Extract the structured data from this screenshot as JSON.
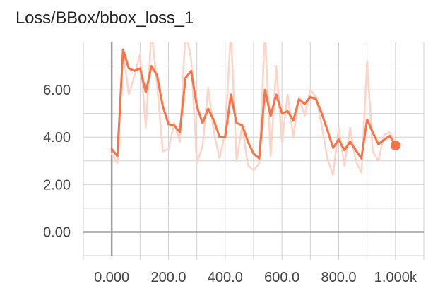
{
  "card": {
    "title": "Loss/BBox/bbox_loss_1"
  },
  "colors": {
    "series": "#ff7043",
    "raw": "#ffd3c6",
    "grid": "#d0d0d0",
    "axis": "#9e9e9e"
  },
  "chart_data": {
    "type": "line",
    "title": "Loss/BBox/bbox_loss_1",
    "xlabel": "",
    "ylabel": "",
    "xlim": [
      -100,
      1100
    ],
    "ylim": [
      -1.0,
      8.0
    ],
    "x_ticks": [
      0,
      200,
      400,
      600,
      800,
      1000
    ],
    "x_tick_labels": [
      "0.000",
      "200.0",
      "400.0",
      "600.0",
      "800.0",
      "1.000k"
    ],
    "y_ticks": [
      0,
      2,
      4,
      6
    ],
    "y_tick_labels": [
      "0.00",
      "2.00",
      "4.00",
      "6.00"
    ],
    "grid": true,
    "series": [
      {
        "name": "",
        "smoothed": true,
        "x": [
          0,
          20,
          40,
          60,
          80,
          100,
          120,
          140,
          160,
          180,
          200,
          220,
          240,
          260,
          280,
          300,
          320,
          340,
          360,
          380,
          400,
          420,
          440,
          460,
          480,
          500,
          520,
          540,
          560,
          580,
          600,
          620,
          640,
          660,
          680,
          700,
          720,
          740,
          760,
          780,
          800,
          820,
          840,
          860,
          880,
          900,
          920,
          940,
          960,
          980,
          1000
        ],
        "y": [
          3.5,
          3.2,
          7.7,
          6.9,
          6.8,
          6.9,
          5.9,
          7.0,
          6.6,
          5.3,
          4.55,
          4.5,
          4.2,
          6.5,
          6.8,
          5.3,
          4.6,
          5.2,
          4.7,
          4.0,
          4.0,
          5.8,
          4.6,
          4.5,
          3.8,
          3.3,
          3.1,
          6.0,
          4.9,
          5.8,
          5.0,
          5.1,
          4.7,
          5.6,
          5.4,
          5.7,
          5.6,
          5.0,
          4.3,
          3.55,
          3.9,
          3.45,
          3.8,
          3.45,
          3.1,
          4.75,
          4.2,
          3.7,
          3.9,
          4.05,
          3.65
        ]
      },
      {
        "name": "",
        "smoothed": false,
        "x": [
          0,
          20,
          40,
          60,
          80,
          100,
          120,
          140,
          160,
          180,
          200,
          220,
          240,
          260,
          280,
          300,
          320,
          340,
          360,
          380,
          400,
          420,
          440,
          460,
          480,
          500,
          520,
          540,
          560,
          580,
          600,
          620,
          640,
          660,
          680,
          700,
          720,
          740,
          760,
          780,
          800,
          820,
          840,
          860,
          880,
          900,
          920,
          940,
          960,
          980,
          1000
        ],
        "y": [
          3.3,
          2.9,
          7.6,
          5.8,
          6.6,
          7.5,
          4.4,
          8.5,
          6.2,
          3.4,
          3.5,
          4.6,
          3.8,
          8.5,
          7.3,
          2.9,
          3.6,
          6.1,
          4.2,
          3.1,
          4.2,
          8.5,
          3.0,
          4.5,
          2.8,
          2.6,
          2.9,
          8.5,
          3.2,
          7.0,
          3.8,
          5.8,
          4.0,
          5.7,
          4.9,
          6.0,
          5.7,
          4.5,
          3.1,
          2.4,
          4.4,
          2.8,
          4.4,
          3.0,
          2.5,
          7.2,
          3.4,
          3.0,
          4.1,
          4.2,
          3.6
        ]
      }
    ]
  }
}
